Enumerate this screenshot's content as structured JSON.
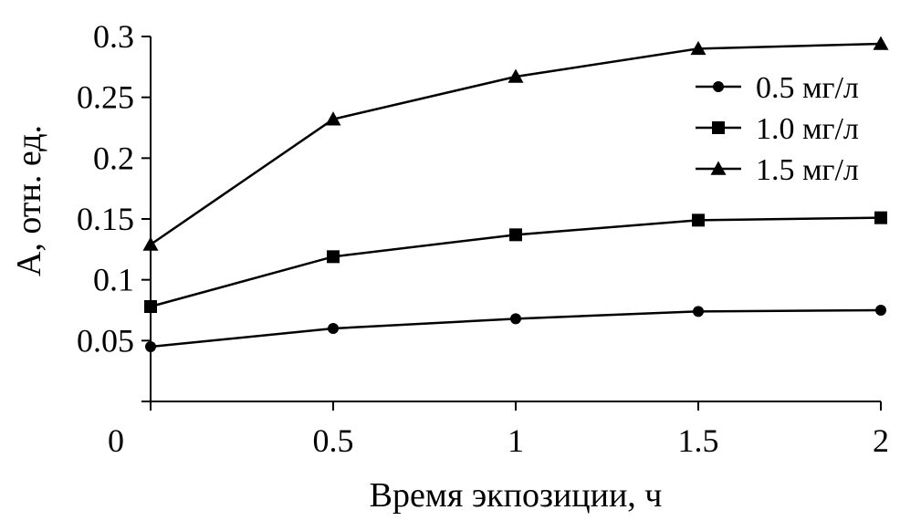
{
  "chart_data": {
    "type": "line",
    "title": "",
    "xlabel": "Время экпозиции, ч",
    "ylabel": "A, отн. ед.",
    "x": [
      0,
      0.5,
      1,
      1.5,
      2
    ],
    "xlim": [
      0,
      2
    ],
    "ylim": [
      0,
      0.3
    ],
    "x_ticks": [
      "0",
      "0.5",
      "1",
      "1.5",
      "2"
    ],
    "y_ticks": [
      "0.05",
      "0.1",
      "0.15",
      "0.2",
      "0.25",
      "0.3"
    ],
    "x_tick_values": [
      0,
      0.5,
      1,
      1.5,
      2
    ],
    "y_tick_values": [
      0.05,
      0.1,
      0.15,
      0.2,
      0.25,
      0.3
    ],
    "grid": false,
    "legend_position": "top-right",
    "series": [
      {
        "name": "0.5 мг/л",
        "marker": "circle",
        "values": [
          0.045,
          0.06,
          0.068,
          0.074,
          0.075
        ]
      },
      {
        "name": "1.0 мг/л",
        "marker": "square",
        "values": [
          0.078,
          0.119,
          0.137,
          0.149,
          0.151
        ]
      },
      {
        "name": "1.5 мг/л",
        "marker": "triangle",
        "values": [
          0.129,
          0.232,
          0.267,
          0.29,
          0.294
        ]
      }
    ],
    "colors": {
      "line": "#000000",
      "background": "#ffffff"
    }
  }
}
